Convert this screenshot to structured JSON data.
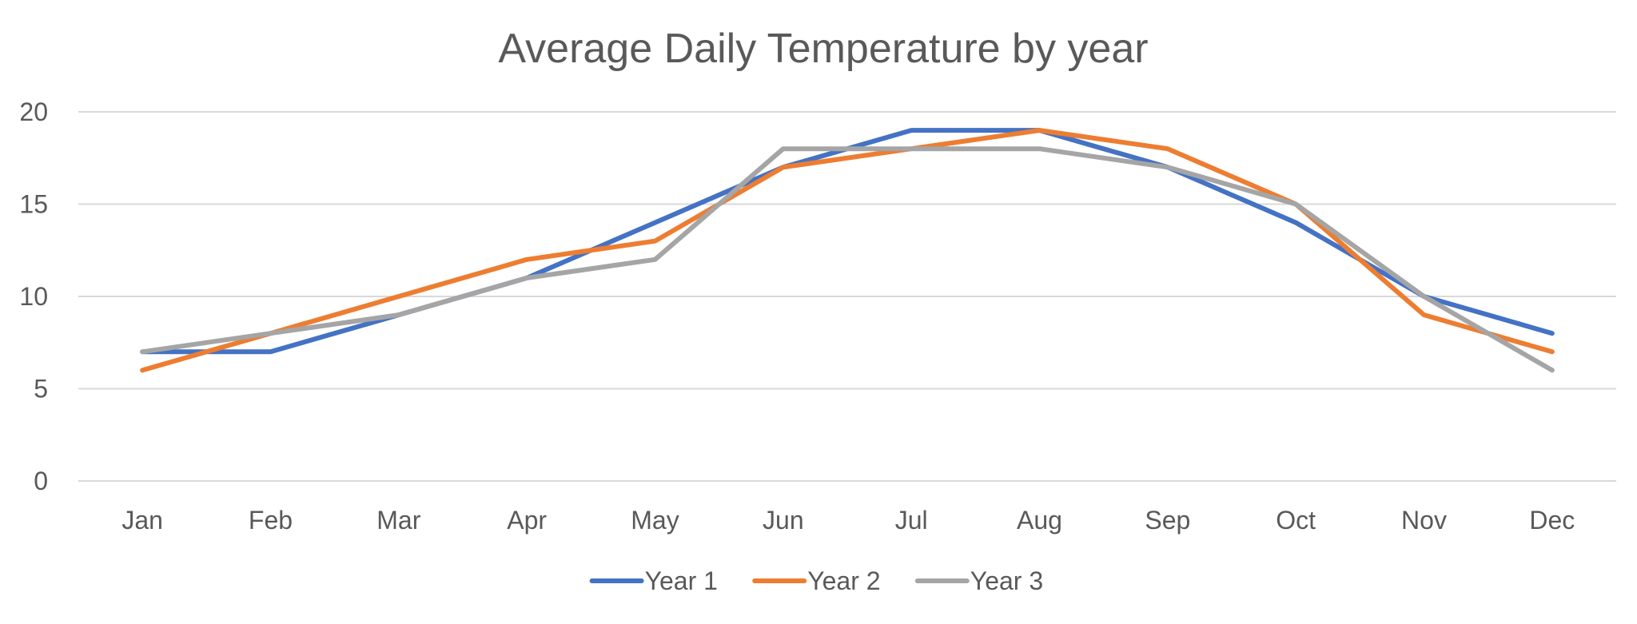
{
  "chart_data": {
    "type": "line",
    "title": "Average Daily Temperature by year",
    "xlabel": "",
    "ylabel": "",
    "categories": [
      "Jan",
      "Feb",
      "Mar",
      "Apr",
      "May",
      "Jun",
      "Jul",
      "Aug",
      "Sep",
      "Oct",
      "Nov",
      "Dec"
    ],
    "ylim": [
      0,
      20
    ],
    "yticks": [
      0,
      5,
      10,
      15,
      20
    ],
    "grid": true,
    "legend": "bottom",
    "series": [
      {
        "name": "Year 1",
        "color": "#4472C4",
        "values": [
          7,
          7,
          9,
          11,
          14,
          17,
          19,
          19,
          17,
          14,
          10,
          8
        ]
      },
      {
        "name": "Year 2",
        "color": "#ED7D31",
        "values": [
          6,
          8,
          10,
          12,
          13,
          17,
          18,
          19,
          18,
          15,
          9,
          7
        ]
      },
      {
        "name": "Year 3",
        "color": "#A5A5A5",
        "values": [
          7,
          8,
          9,
          11,
          12,
          18,
          18,
          18,
          17,
          15,
          10,
          6
        ]
      }
    ]
  }
}
